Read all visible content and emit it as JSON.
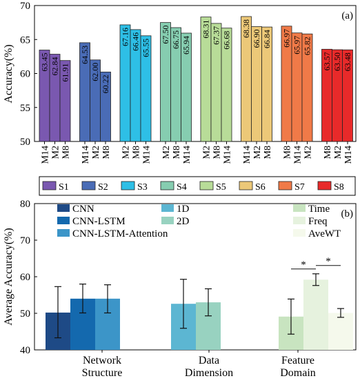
{
  "chart_data": [
    {
      "type": "bar",
      "panel_label": "(a)",
      "ylabel": "Accuracy(%)",
      "ylim": [
        50,
        70
      ],
      "yticks": [
        50,
        55,
        60,
        65,
        70
      ],
      "subjects": [
        {
          "name": "S1",
          "color": "#7a58b0",
          "bars": [
            {
              "label": "M14",
              "value": 63.45
            },
            {
              "label": "M2",
              "value": 62.84
            },
            {
              "label": "M8",
              "value": 61.91
            }
          ]
        },
        {
          "name": "S2",
          "color": "#4a6cb6",
          "bars": [
            {
              "label": "M14",
              "value": 64.53
            },
            {
              "label": "M2",
              "value": 62.0
            },
            {
              "label": "M8",
              "value": 60.22
            }
          ]
        },
        {
          "name": "S3",
          "color": "#2ebfe6",
          "bars": [
            {
              "label": "M2",
              "value": 67.16
            },
            {
              "label": "M8",
              "value": 66.46
            },
            {
              "label": "M14",
              "value": 65.55
            }
          ]
        },
        {
          "name": "S4",
          "color": "#86cdb0",
          "bars": [
            {
              "label": "M2",
              "value": 67.5
            },
            {
              "label": "M8",
              "value": 66.75
            },
            {
              "label": "M14",
              "value": 65.94
            }
          ]
        },
        {
          "name": "S5",
          "color": "#b8dc98",
          "bars": [
            {
              "label": "M2",
              "value": 68.31
            },
            {
              "label": "M8",
              "value": 67.37
            },
            {
              "label": "M14",
              "value": 66.68
            }
          ]
        },
        {
          "name": "S6",
          "color": "#ecc878",
          "bars": [
            {
              "label": "M14",
              "value": 68.38
            },
            {
              "label": "M2",
              "value": 66.9
            },
            {
              "label": "M8",
              "value": 66.84
            }
          ]
        },
        {
          "name": "S7",
          "color": "#f07a48",
          "bars": [
            {
              "label": "M8",
              "value": 66.97
            },
            {
              "label": "M14",
              "value": 65.97
            },
            {
              "label": "M2",
              "value": 65.82
            }
          ]
        },
        {
          "name": "S8",
          "color": "#e82a2a",
          "bars": [
            {
              "label": "M8",
              "value": 63.57
            },
            {
              "label": "M2",
              "value": 63.5
            },
            {
              "label": "M14",
              "value": 63.48
            }
          ]
        }
      ]
    },
    {
      "type": "bar",
      "panel_label": "(b)",
      "ylabel": "Average Accuracy(%)",
      "ylim": [
        40,
        80
      ],
      "yticks": [
        40,
        50,
        60,
        70,
        80
      ],
      "groups": [
        {
          "label_lines": [
            "Network",
            "Structure"
          ],
          "bars": [
            {
              "name": "CNN",
              "color": "#1e4a86",
              "value": 50.2,
              "err": [
                43.3,
                57.3
              ]
            },
            {
              "name": "CNN-LSTM",
              "color": "#1469ae",
              "value": 54.0,
              "err": [
                50.1,
                58.0
              ]
            },
            {
              "name": "CNN-LSTM-Attention",
              "color": "#3c95c8",
              "value": 54.0,
              "err": [
                50.1,
                57.8
              ]
            }
          ]
        },
        {
          "label_lines": [
            "Data",
            "Dimension"
          ],
          "bars": [
            {
              "name": "1D",
              "color": "#5cb6d2",
              "value": 52.6,
              "err": [
                45.9,
                59.3
              ]
            },
            {
              "name": "2D",
              "color": "#98d2c0",
              "value": 53.0,
              "err": [
                49.3,
                56.7
              ]
            }
          ]
        },
        {
          "label_lines": [
            "Feature",
            "Domain"
          ],
          "bars": [
            {
              "name": "Time",
              "color": "#c8e4c0",
              "value": 49.1,
              "err": [
                44.3,
                53.9
              ]
            },
            {
              "name": "Freq",
              "color": "#e6f2de",
              "value": 59.2,
              "err": [
                57.6,
                60.8
              ]
            },
            {
              "name": "AveWT",
              "color": "#f5f9ec",
              "value": 50.1,
              "err": [
                48.9,
                51.3
              ]
            }
          ]
        }
      ],
      "significance": [
        {
          "from": "Time",
          "to": "Freq",
          "text": "*"
        },
        {
          "from": "Freq",
          "to": "AveWT",
          "text": "*"
        }
      ]
    }
  ]
}
